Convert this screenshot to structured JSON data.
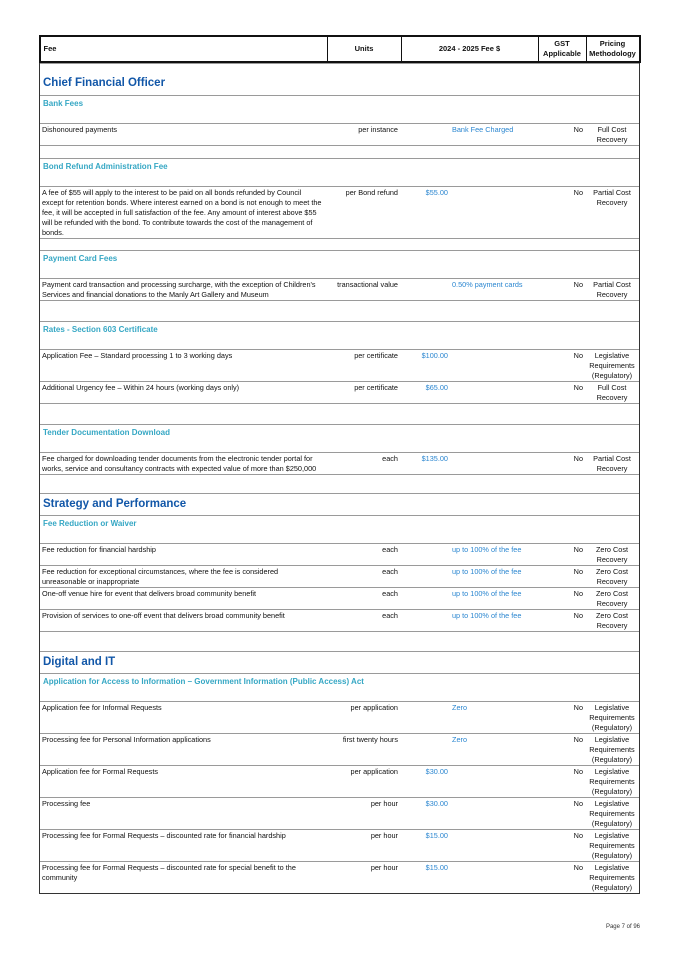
{
  "header": {
    "fee": "Fee",
    "units": "Units",
    "fee_year": "2024 - 2025 Fee $",
    "gst": "GST Applicable",
    "pricing": "Pricing Methodology"
  },
  "sections": [
    {
      "title": "Chief Financial Officer",
      "groups": [
        {
          "title": "Bank Fees",
          "rows": [
            {
              "fee": "Dishonoured payments",
              "units": "per instance",
              "value": "Bank Fee Charged",
              "gst": "No",
              "pricing": "Full Cost Recovery"
            }
          ]
        },
        {
          "title": "Bond Refund Administration Fee",
          "rows": [
            {
              "fee": "A fee of $55 will apply to the interest to be paid on all bonds refunded by Council except for retention bonds. Where interest earned on a bond is not enough to meet the fee, it will be accepted in full satisfaction of the fee. Any amount of interest above $55 will be refunded with the bond. To contribute towards the cost of the management of bonds.",
              "units": "per Bond refund",
              "value": "$55.00",
              "gst": "No",
              "pricing": "Partial Cost Recovery"
            }
          ]
        },
        {
          "title": "Payment Card Fees",
          "rows": [
            {
              "fee": "Payment card transaction and processing surcharge, with the exception of Children's Services and financial donations to the Manly Art Gallery and Museum",
              "units": "transactional value",
              "value": "0.50% payment cards",
              "gst": "No",
              "pricing": "Partial Cost Recovery"
            }
          ]
        },
        {
          "title": "Rates - Section 603 Certificate",
          "rows": [
            {
              "fee": "Application Fee – Standard processing 1 to 3 working days",
              "units": "per certificate",
              "value": "$100.00",
              "gst": "No",
              "pricing": "Legislative Requirements (Regulatory)"
            },
            {
              "fee": "Additional Urgency fee – Within 24 hours (working days only)",
              "units": "per certificate",
              "value": "$65.00",
              "gst": "No",
              "pricing": "Full Cost Recovery"
            }
          ]
        },
        {
          "title": "Tender Documentation Download",
          "rows": [
            {
              "fee": "Fee charged for downloading tender documents from the electronic tender portal for works, service and consultancy contracts with expected value of more than $250,000",
              "units": "each",
              "value": "$135.00",
              "gst": "No",
              "pricing": "Partial Cost Recovery"
            }
          ]
        }
      ]
    },
    {
      "title": "Strategy and Performance",
      "groups": [
        {
          "title": "Fee Reduction or Waiver",
          "rows": [
            {
              "fee": "Fee reduction for financial hardship",
              "units": "each",
              "value": "up to 100% of the fee",
              "gst": "No",
              "pricing": "Zero Cost Recovery"
            },
            {
              "fee": "Fee reduction for exceptional circumstances, where the fee is considered unreasonable or inappropriate",
              "units": "each",
              "value": "up to 100% of the fee",
              "gst": "No",
              "pricing": "Zero Cost Recovery"
            },
            {
              "fee": "One-off venue hire for event that delivers broad community benefit",
              "units": "each",
              "value": "up to 100% of the fee",
              "gst": "No",
              "pricing": "Zero Cost Recovery"
            },
            {
              "fee": "Provision of services to one-off event that delivers broad community benefit",
              "units": "each",
              "value": "up to 100% of the fee",
              "gst": "No",
              "pricing": "Zero Cost Recovery"
            }
          ]
        }
      ]
    },
    {
      "title": "Digital and IT",
      "groups": [
        {
          "title": "Application for Access to Information – Government Information (Public Access) Act",
          "rows": [
            {
              "fee": "Application fee for Informal Requests",
              "units": "per application",
              "value": "Zero",
              "gst": "No",
              "pricing": "Legislative Requirements (Regulatory)"
            },
            {
              "fee": "Processing fee for Personal Information applications",
              "units": "first twenty hours",
              "value": "Zero",
              "gst": "No",
              "pricing": "Legislative Requirements (Regulatory)"
            },
            {
              "fee": "Application fee for Formal Requests",
              "units": "per application",
              "value": "$30.00",
              "gst": "No",
              "pricing": "Legislative Requirements (Regulatory)"
            },
            {
              "fee": "Processing fee",
              "units": "per hour",
              "value": "$30.00",
              "gst": "No",
              "pricing": "Legislative Requirements (Regulatory)"
            },
            {
              "fee": "Processing fee for Formal Requests – discounted rate for financial hardship",
              "units": "per hour",
              "value": "$15.00",
              "gst": "No",
              "pricing": "Legislative Requirements (Regulatory)"
            },
            {
              "fee": "Processing fee for Formal Requests – discounted rate for special benefit to the community",
              "units": "per hour",
              "value": "$15.00",
              "gst": "No",
              "pricing": "Legislative Requirements (Regulatory)"
            }
          ]
        }
      ]
    }
  ],
  "footer": {
    "page": "Page 7 of 96"
  }
}
